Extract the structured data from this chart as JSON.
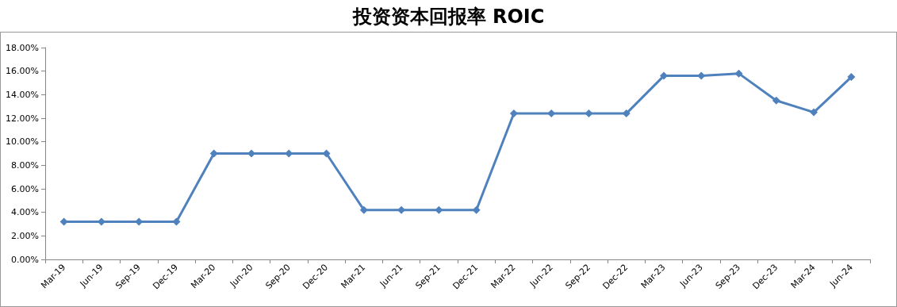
{
  "chart_data": {
    "type": "line",
    "title": "投资资本回报率 ROIC",
    "categories": [
      "Mar-19",
      "Jun-19",
      "Sep-19",
      "Dec-19",
      "Mar-20",
      "Jun-20",
      "Sep-20",
      "Dec-20",
      "Mar-21",
      "Jun-21",
      "Sep-21",
      "Dec-21",
      "Mar-22",
      "Jun-22",
      "Sep-22",
      "Dec-22",
      "Mar-23",
      "Jun-23",
      "Sep-23",
      "Dec-23",
      "Mar-24",
      "Jun-24"
    ],
    "series": [
      {
        "color": "#4f81bd",
        "values": [
          3.2,
          3.2,
          3.2,
          3.2,
          9.0,
          9.0,
          9.0,
          9.0,
          4.2,
          4.2,
          4.2,
          4.2,
          12.4,
          12.4,
          12.4,
          12.4,
          15.6,
          15.6,
          15.8,
          13.5,
          12.5,
          15.5
        ]
      }
    ],
    "ylim": [
      0,
      18
    ],
    "yticks": [
      {
        "value": 0,
        "label": "0.00%"
      },
      {
        "value": 2,
        "label": "2.00%"
      },
      {
        "value": 4,
        "label": "4.00%"
      },
      {
        "value": 6,
        "label": "6.00%"
      },
      {
        "value": 8,
        "label": "8.00%"
      },
      {
        "value": 10,
        "label": "10.00%"
      },
      {
        "value": 12,
        "label": "12.00%"
      },
      {
        "value": 14,
        "label": "14.00%"
      },
      {
        "value": 16,
        "label": "16.00%"
      },
      {
        "value": 18,
        "label": "18.00%"
      }
    ],
    "grid": false,
    "marker": "diamond",
    "line_style": "solid"
  }
}
